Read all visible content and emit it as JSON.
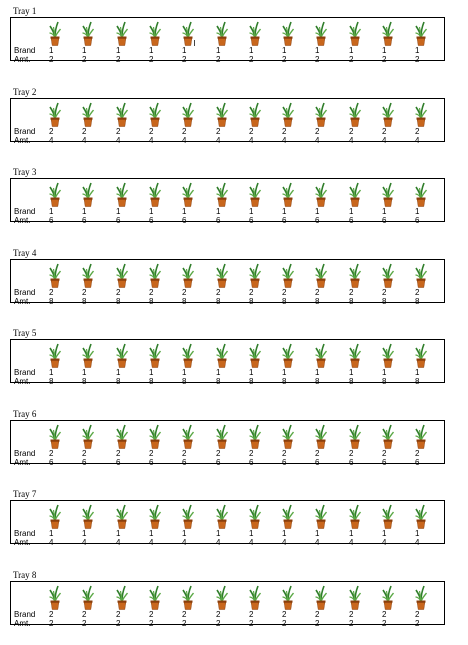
{
  "labels": {
    "brand": "Brand",
    "amount": "Amt."
  },
  "icon": "potted-plant-icon",
  "colors": {
    "pot": "#c8661c",
    "pot_dark": "#8a3f0c",
    "leaf": "#2f7d2a",
    "leaf_light": "#5aa845"
  },
  "trays": [
    {
      "title": "Tray 1",
      "brand": [
        "1",
        "1",
        "1",
        "1",
        "1",
        "1",
        "1",
        "1",
        "1",
        "1",
        "1",
        "1"
      ],
      "amount": [
        "2",
        "2",
        "2",
        "2",
        "2",
        "2",
        "2",
        "2",
        "2",
        "2",
        "2",
        "2"
      ]
    },
    {
      "title": "Tray 2",
      "brand": [
        "2",
        "2",
        "2",
        "2",
        "2",
        "2",
        "2",
        "2",
        "2",
        "2",
        "2",
        "2"
      ],
      "amount": [
        "4",
        "4",
        "4",
        "4",
        "4",
        "4",
        "4",
        "4",
        "4",
        "4",
        "4",
        "4"
      ]
    },
    {
      "title": "Tray 3",
      "brand": [
        "1",
        "1",
        "1",
        "1",
        "1",
        "1",
        "1",
        "1",
        "1",
        "1",
        "1",
        "1"
      ],
      "amount": [
        "6",
        "6",
        "6",
        "6",
        "6",
        "6",
        "6",
        "6",
        "6",
        "6",
        "6",
        "6"
      ]
    },
    {
      "title": "Tray 4",
      "brand": [
        "2",
        "2",
        "2",
        "2",
        "2",
        "2",
        "2",
        "2",
        "2",
        "2",
        "2",
        "2"
      ],
      "amount": [
        "8",
        "8",
        "8",
        "8",
        "8",
        "8",
        "8",
        "8",
        "8",
        "8",
        "8",
        "8"
      ]
    },
    {
      "title": "Tray 5",
      "brand": [
        "1",
        "1",
        "1",
        "1",
        "1",
        "1",
        "1",
        "1",
        "1",
        "1",
        "1",
        "1"
      ],
      "amount": [
        "8",
        "8",
        "8",
        "8",
        "8",
        "8",
        "8",
        "8",
        "8",
        "8",
        "8",
        "8"
      ]
    },
    {
      "title": "Tray 6",
      "brand": [
        "2",
        "2",
        "2",
        "2",
        "2",
        "2",
        "2",
        "2",
        "2",
        "2",
        "2",
        "2"
      ],
      "amount": [
        "6",
        "6",
        "6",
        "6",
        "6",
        "6",
        "6",
        "6",
        "6",
        "6",
        "6",
        "6"
      ]
    },
    {
      "title": "Tray 7",
      "brand": [
        "1",
        "1",
        "1",
        "1",
        "1",
        "1",
        "1",
        "1",
        "1",
        "1",
        "1",
        "1"
      ],
      "amount": [
        "4",
        "4",
        "4",
        "4",
        "4",
        "4",
        "4",
        "4",
        "4",
        "4",
        "4",
        "4"
      ]
    },
    {
      "title": "Tray 8",
      "brand": [
        "2",
        "2",
        "2",
        "2",
        "2",
        "2",
        "2",
        "2",
        "2",
        "2",
        "2",
        "2"
      ],
      "amount": [
        "2",
        "2",
        "2",
        "2",
        "2",
        "2",
        "2",
        "2",
        "2",
        "2",
        "2",
        "2"
      ]
    }
  ]
}
